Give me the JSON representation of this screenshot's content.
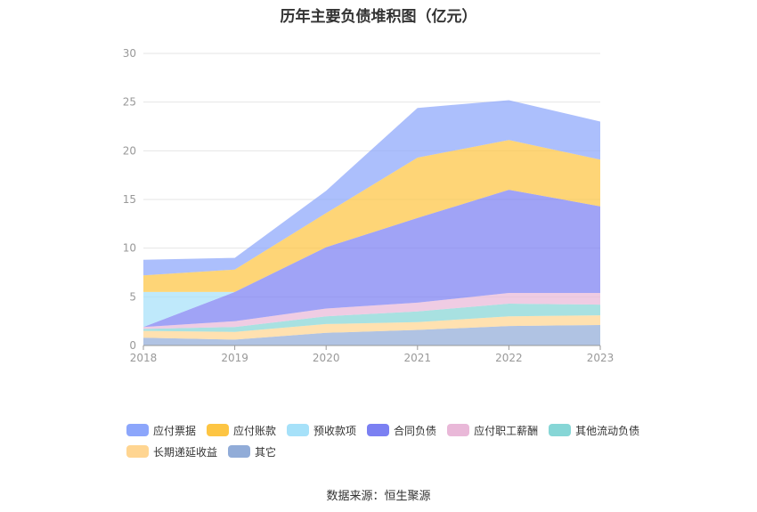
{
  "chart_data": {
    "type": "area",
    "stacked": true,
    "title": "历年主要负债堆积图（亿元）",
    "x": [
      "2018",
      "2019",
      "2020",
      "2021",
      "2022",
      "2023"
    ],
    "ylim": [
      0,
      30
    ],
    "yticks": [
      0,
      5,
      10,
      15,
      20,
      25,
      30
    ],
    "grid": true,
    "legend_position": "bottom",
    "series": [
      {
        "name": "其它",
        "color": "#91acd8",
        "values": [
          0.8,
          0.6,
          1.3,
          1.6,
          2.0,
          2.1
        ]
      },
      {
        "name": "长期递延收益",
        "color": "#ffd591",
        "values": [
          0.7,
          0.8,
          0.9,
          0.8,
          1.0,
          1.0
        ]
      },
      {
        "name": "其他流动负债",
        "color": "#86d6d6",
        "values": [
          0.2,
          0.5,
          0.8,
          1.1,
          1.3,
          1.1
        ]
      },
      {
        "name": "应付职工薪酬",
        "color": "#e9b8d8",
        "values": [
          0.2,
          0.6,
          0.8,
          0.9,
          1.1,
          1.2
        ]
      },
      {
        "name": "合同负债",
        "color": "#7b80f2",
        "values": [
          0.0,
          3.0,
          6.3,
          8.7,
          10.6,
          8.9
        ]
      },
      {
        "name": "预收款项",
        "color": "#a6e1f9",
        "values": [
          3.6,
          0.0,
          0.0,
          0.0,
          0.0,
          0.0
        ]
      },
      {
        "name": "应付账款",
        "color": "#fdc543",
        "values": [
          1.7,
          2.3,
          3.5,
          6.2,
          5.1,
          4.8
        ]
      },
      {
        "name": "应付票据",
        "color": "#8ca6fb",
        "values": [
          1.6,
          1.2,
          2.3,
          5.1,
          4.1,
          3.9
        ]
      }
    ]
  },
  "legend": {
    "row1": [
      {
        "label": "应付票据",
        "color": "#8ca6fb"
      },
      {
        "label": "应付账款",
        "color": "#fdc543"
      },
      {
        "label": "预收款项",
        "color": "#a6e1f9"
      },
      {
        "label": "合同负债",
        "color": "#7b80f2"
      },
      {
        "label": "应付职工薪酬",
        "color": "#e9b8d8"
      },
      {
        "label": "其他流动负债",
        "color": "#86d6d6"
      }
    ],
    "row2": [
      {
        "label": "长期递延收益",
        "color": "#ffd591"
      },
      {
        "label": "其它",
        "color": "#91acd8"
      }
    ]
  },
  "source": "数据来源：恒生聚源"
}
